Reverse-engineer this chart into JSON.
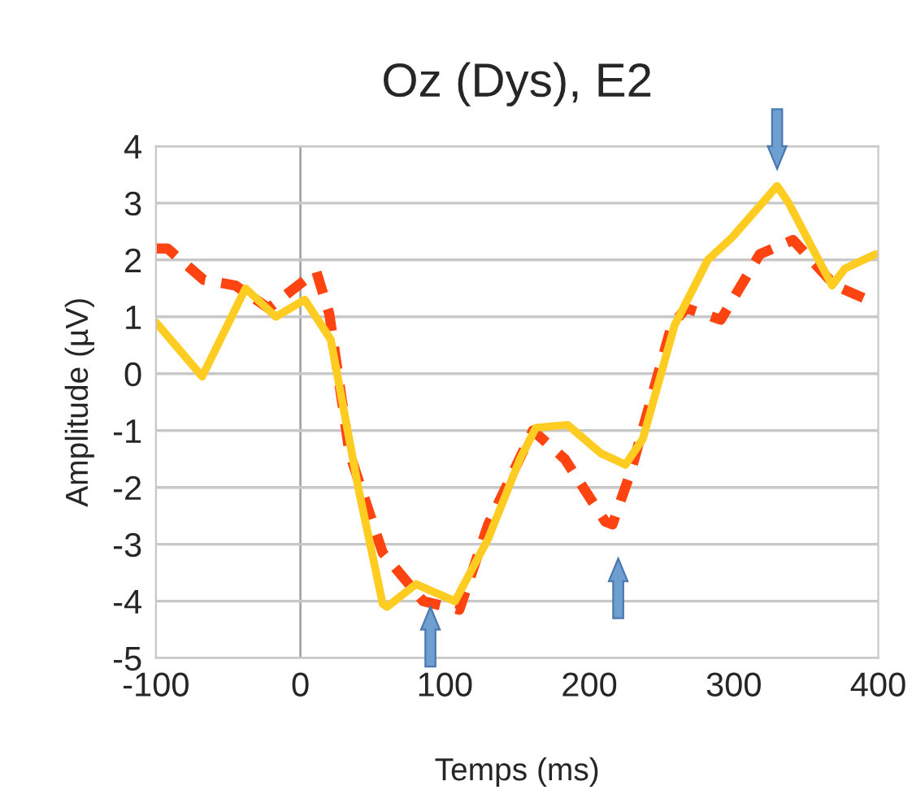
{
  "chart_data": {
    "type": "line",
    "title": "Oz (Dys), E2",
    "xlabel": "Temps (ms)",
    "ylabel": "Amplitude (µV)",
    "xlim": [
      -100,
      400
    ],
    "xticks": [
      -100,
      0,
      100,
      200,
      300,
      400
    ],
    "ylim": [
      -5,
      4
    ],
    "yticks": [
      -5,
      -4,
      -3,
      -2,
      -1,
      0,
      1,
      2,
      3,
      4
    ],
    "grid": "y",
    "legend": false,
    "ref_lines": [
      {
        "axis": "x",
        "value": 0,
        "color": "#a6a6a6"
      }
    ],
    "series": [
      {
        "color": "#ff4411",
        "line_style": "dashed",
        "x": [
          -100,
          -92,
          -67,
          -45,
          -22,
          11,
          20,
          34,
          57,
          85,
          110,
          130,
          161,
          183,
          211,
          216,
          229,
          257,
          267,
          291,
          318,
          341,
          370,
          397
        ],
        "values": [
          2.2,
          2.2,
          1.65,
          1.55,
          1.15,
          1.8,
          1.05,
          -1.4,
          -3.15,
          -4.0,
          -4.15,
          -2.65,
          -1.0,
          -1.5,
          -2.6,
          -2.65,
          -1.7,
          0.85,
          1.15,
          0.95,
          2.1,
          2.35,
          1.55,
          1.25
        ]
      },
      {
        "color": "#ffcc22",
        "line_style": "solid",
        "x": [
          -100,
          -68,
          -38,
          -17,
          3,
          21,
          40,
          57,
          60,
          80,
          107,
          130,
          152,
          163,
          185,
          208,
          225,
          237,
          259,
          282,
          299,
          330,
          338,
          368,
          377,
          398
        ],
        "values": [
          0.9,
          -0.05,
          1.5,
          1.0,
          1.3,
          0.6,
          -2.0,
          -4.05,
          -4.1,
          -3.7,
          -4.0,
          -2.9,
          -1.5,
          -0.95,
          -0.9,
          -1.4,
          -1.6,
          -1.15,
          0.85,
          2.0,
          2.4,
          3.3,
          3.0,
          1.55,
          1.85,
          2.1
        ]
      }
    ]
  }
}
